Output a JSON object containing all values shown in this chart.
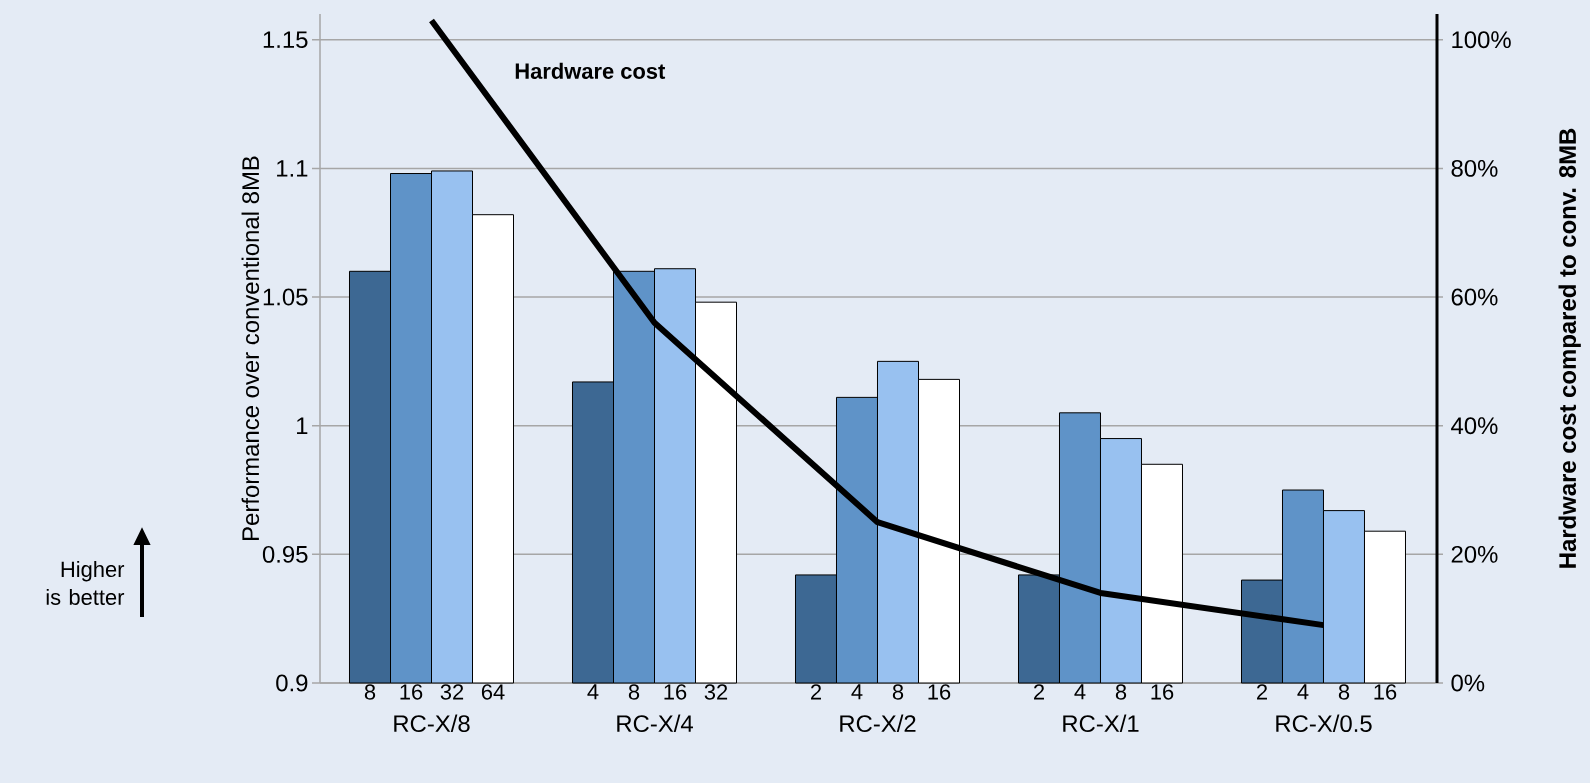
{
  "chart_data": {
    "type": "bar",
    "categories": [
      "RC-X/8",
      "RC-X/4",
      "RC-X/2",
      "RC-X/1",
      "RC-X/0.5"
    ],
    "series": [
      {
        "color": "#3d6893",
        "values": [
          1.06,
          1.017,
          0.942,
          0.942,
          0.94
        ]
      },
      {
        "color": "#5f93c8",
        "values": [
          1.098,
          1.06,
          1.011,
          1.005,
          0.975
        ]
      },
      {
        "color": "#98c1f0",
        "values": [
          1.099,
          1.061,
          1.025,
          0.995,
          0.967
        ]
      },
      {
        "color": "#ffffff",
        "values": [
          1.082,
          1.048,
          1.018,
          0.985,
          0.959
        ]
      },
      {
        "type": "line",
        "axis": "y2",
        "name": "Hardware cost",
        "color": "#000000",
        "values": [
          103,
          56,
          25,
          14,
          9
        ]
      }
    ],
    "ylabel": "Performance over conventional 8MB",
    "y2label": "Hardware cost compared to conv. 8MB",
    "ylim": [
      0.9,
      1.16
    ],
    "yticks": [
      0.9,
      0.95,
      1,
      1.05,
      1.1,
      1.15
    ],
    "y2lim": [
      0,
      104
    ],
    "y2ticks": [
      {
        "value": 0,
        "label": "0%"
      },
      {
        "value": 20,
        "label": "20%"
      },
      {
        "value": 40,
        "label": "40%"
      },
      {
        "value": 60,
        "label": "60%"
      },
      {
        "value": 80,
        "label": "80%"
      },
      {
        "value": 100,
        "label": "100%"
      }
    ],
    "grid": "y",
    "annotations": [
      "8",
      "16",
      "32",
      "64",
      "4",
      "8",
      "16",
      "32",
      "2",
      "4",
      "8",
      "16",
      "2",
      "4",
      "8",
      "16",
      "2",
      "4",
      "8",
      "16",
      "Higher is better"
    ]
  }
}
